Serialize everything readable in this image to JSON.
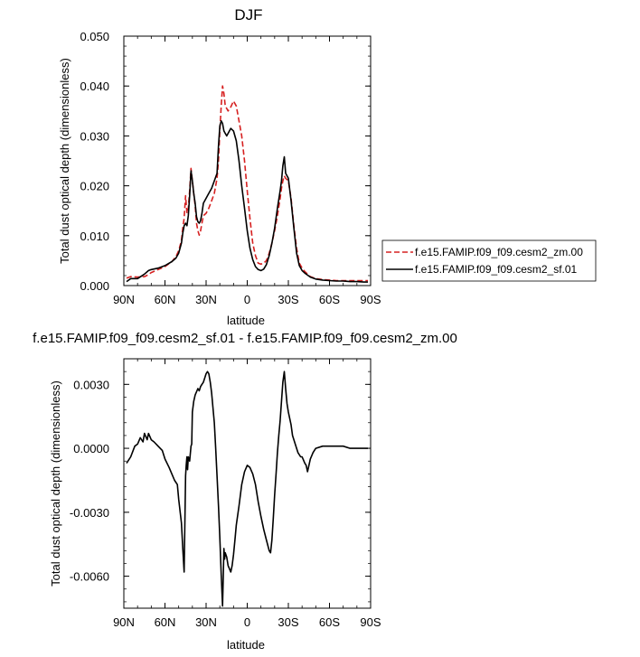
{
  "chart_data": [
    {
      "type": "line",
      "title": "DJF",
      "xlabel": "latitude",
      "ylabel": "Total dust optical depth (dimensionless)",
      "xlim": [
        90,
        -90
      ],
      "ylim": [
        0,
        0.05
      ],
      "x_ticks": [
        90,
        60,
        30,
        0,
        -30,
        -60,
        -90
      ],
      "x_tick_labels": [
        "90N",
        "60N",
        "30N",
        "0",
        "30S",
        "60S",
        "90S"
      ],
      "y_ticks": [
        0,
        0.01,
        0.02,
        0.03,
        0.04,
        0.05
      ],
      "y_tick_labels": [
        "0.000",
        "0.010",
        "0.020",
        "0.030",
        "0.040",
        "0.050"
      ],
      "legend_position": "right",
      "series": [
        {
          "name": "f.e15.FAMIP.f09_f09.cesm2_zm.00",
          "color": "#d62020",
          "style": "dashed",
          "x": [
            88,
            85,
            80,
            75,
            72,
            70,
            65,
            60,
            55,
            52,
            50,
            48,
            47,
            46,
            45,
            44,
            43,
            42,
            41,
            40,
            39,
            38,
            37,
            36,
            35,
            34,
            33,
            32,
            30,
            28,
            26,
            24,
            22,
            21,
            20,
            19,
            18,
            17,
            16,
            15,
            14,
            12,
            10,
            8,
            6,
            4,
            2,
            0,
            -2,
            -4,
            -6,
            -8,
            -10,
            -12,
            -14,
            -16,
            -18,
            -20,
            -22,
            -24,
            -25,
            -26,
            -27,
            -28,
            -30,
            -32,
            -34,
            -36,
            -38,
            -40,
            -42,
            -44,
            -46,
            -50,
            -55,
            -60,
            -65,
            -70,
            -75,
            -80,
            -85,
            -88
          ],
          "y": [
            0.0015,
            0.0018,
            0.0017,
            0.0018,
            0.0022,
            0.0026,
            0.0032,
            0.0038,
            0.0048,
            0.0058,
            0.007,
            0.009,
            0.0115,
            0.0135,
            0.018,
            0.0145,
            0.0155,
            0.019,
            0.0235,
            0.021,
            0.0185,
            0.016,
            0.0125,
            0.011,
            0.0101,
            0.011,
            0.0125,
            0.014,
            0.0145,
            0.0155,
            0.017,
            0.0185,
            0.0215,
            0.025,
            0.031,
            0.036,
            0.04,
            0.0385,
            0.036,
            0.0355,
            0.035,
            0.0358,
            0.037,
            0.036,
            0.033,
            0.03,
            0.025,
            0.019,
            0.0135,
            0.0085,
            0.006,
            0.0045,
            0.0043,
            0.0045,
            0.005,
            0.0065,
            0.0085,
            0.011,
            0.014,
            0.0175,
            0.0195,
            0.021,
            0.022,
            0.0215,
            0.021,
            0.0175,
            0.012,
            0.0075,
            0.0045,
            0.0035,
            0.0028,
            0.0023,
            0.0018,
            0.0014,
            0.0012,
            0.0011,
            0.001,
            0.001,
            0.001,
            0.001,
            0.001,
            0.001
          ]
        },
        {
          "name": "f.e15.FAMIP.f09_f09.cesm2_sf.01",
          "color": "#000000",
          "style": "solid",
          "x": [
            88,
            85,
            80,
            75,
            72,
            70,
            65,
            60,
            55,
            52,
            50,
            48,
            47,
            46,
            45,
            44,
            43,
            42,
            41,
            40,
            39,
            38,
            37,
            36,
            35,
            34,
            33,
            32,
            30,
            28,
            26,
            24,
            22,
            21,
            20,
            19,
            18,
            17,
            16,
            15,
            14,
            12,
            10,
            8,
            6,
            4,
            2,
            0,
            -2,
            -4,
            -6,
            -8,
            -10,
            -12,
            -14,
            -16,
            -18,
            -20,
            -22,
            -24,
            -25,
            -26,
            -27,
            -28,
            -30,
            -32,
            -34,
            -36,
            -38,
            -40,
            -42,
            -44,
            -46,
            -50,
            -55,
            -60,
            -65,
            -70,
            -75,
            -80,
            -85,
            -88
          ],
          "y": [
            0.0008,
            0.0014,
            0.0014,
            0.0023,
            0.003,
            0.0032,
            0.0035,
            0.004,
            0.0048,
            0.0055,
            0.0065,
            0.0085,
            0.0105,
            0.012,
            0.0125,
            0.012,
            0.014,
            0.018,
            0.023,
            0.021,
            0.0185,
            0.0165,
            0.0138,
            0.0128,
            0.0125,
            0.013,
            0.0145,
            0.0165,
            0.0175,
            0.0185,
            0.0195,
            0.021,
            0.0225,
            0.028,
            0.032,
            0.033,
            0.0325,
            0.031,
            0.0305,
            0.03,
            0.0305,
            0.0315,
            0.031,
            0.029,
            0.025,
            0.02,
            0.0155,
            0.011,
            0.0075,
            0.0052,
            0.0038,
            0.0032,
            0.003,
            0.0033,
            0.0042,
            0.006,
            0.0085,
            0.0115,
            0.0155,
            0.019,
            0.021,
            0.024,
            0.0258,
            0.0225,
            0.0215,
            0.017,
            0.0115,
            0.0065,
            0.004,
            0.003,
            0.0025,
            0.0021,
            0.0017,
            0.0013,
            0.0011,
            0.001,
            0.0009,
            0.0009,
            0.0008,
            0.0008,
            0.0007,
            0.0007
          ]
        }
      ]
    },
    {
      "type": "line",
      "title": "f.e15.FAMIP.f09_f09.cesm2_sf.01 - f.e15.FAMIP.f09_f09.cesm2_zm.00",
      "xlabel": "latitude",
      "ylabel": "Total dust optical depth (dimensionless)",
      "xlim": [
        90,
        -90
      ],
      "ylim": [
        -0.0075,
        0.0042
      ],
      "x_ticks": [
        90,
        60,
        30,
        0,
        -30,
        -60,
        -90
      ],
      "x_tick_labels": [
        "90N",
        "60N",
        "30N",
        "0",
        "30S",
        "60S",
        "90S"
      ],
      "y_ticks": [
        -0.006,
        -0.003,
        0,
        0.003
      ],
      "y_tick_labels": [
        "-0.0060",
        "-0.0030",
        "0.0000",
        "0.0030"
      ],
      "series": [
        {
          "name": "",
          "color": "#000000",
          "style": "solid",
          "x": [
            88,
            85,
            82,
            80,
            78,
            76,
            75,
            73,
            72,
            70,
            68,
            65,
            62,
            60,
            57,
            55,
            53,
            51,
            50,
            48,
            47,
            46,
            45,
            44.5,
            44,
            43.5,
            43,
            42,
            41,
            40.5,
            40,
            39,
            38,
            36,
            35,
            34,
            33,
            32,
            31,
            30,
            29,
            28,
            27,
            26,
            25,
            24,
            23,
            22,
            21,
            20,
            19,
            18,
            17.5,
            17,
            16.5,
            16,
            15,
            14,
            12,
            11,
            10,
            9,
            8,
            6,
            4,
            2,
            0,
            -2,
            -4,
            -6,
            -8,
            -10,
            -12,
            -14,
            -16,
            -17,
            -18,
            -19,
            -20,
            -21,
            -22,
            -23,
            -24,
            -25,
            -26,
            -27,
            -28,
            -29,
            -30,
            -32,
            -33,
            -35,
            -37,
            -39,
            -40,
            -42,
            -43,
            -44,
            -46,
            -48,
            -50,
            -55,
            -60,
            -65,
            -70,
            -75,
            -80,
            -85,
            -88
          ],
          "y": [
            -0.0007,
            -0.0004,
            0.0001,
            0.0002,
            0.0005,
            0.0003,
            0.0007,
            0.0004,
            0.0007,
            0.0004,
            0.0003,
            0.0001,
            -0.0001,
            -0.0005,
            -0.0009,
            -0.0012,
            -0.0015,
            -0.0017,
            -0.0024,
            -0.0035,
            -0.0047,
            -0.0058,
            -0.0013,
            -0.0008,
            -0.0004,
            -0.001,
            -0.0004,
            -0.0006,
            0.0001,
            0.0002,
            0.0017,
            0.0022,
            0.0025,
            0.0028,
            0.0027,
            0.0029,
            0.003,
            0.0031,
            0.0033,
            0.0035,
            0.0036,
            0.0035,
            0.0031,
            0.0026,
            0.0019,
            0.0012,
            0.0,
            -0.0013,
            -0.0027,
            -0.0042,
            -0.0059,
            -0.0074,
            -0.006,
            -0.0047,
            -0.0052,
            -0.0049,
            -0.0051,
            -0.0055,
            -0.0058,
            -0.0055,
            -0.005,
            -0.0043,
            -0.0036,
            -0.0027,
            -0.0017,
            -0.0011,
            -0.0008,
            -0.0009,
            -0.0012,
            -0.0017,
            -0.0025,
            -0.0032,
            -0.0038,
            -0.0043,
            -0.0048,
            -0.0049,
            -0.0043,
            -0.0033,
            -0.0022,
            -0.0012,
            -0.0002,
            0.0006,
            0.0013,
            0.0022,
            0.0031,
            0.0036,
            0.0028,
            0.0021,
            0.0017,
            0.0011,
            0.0006,
            0.0002,
            -0.0002,
            -0.0004,
            -0.0004,
            -0.0007,
            -0.0008,
            -0.0011,
            -0.0005,
            -0.0002,
            0.0,
            0.0001,
            0.0001,
            0.0001,
            0.0001,
            0.0,
            0.0,
            0.0,
            0.0
          ]
        }
      ]
    }
  ]
}
